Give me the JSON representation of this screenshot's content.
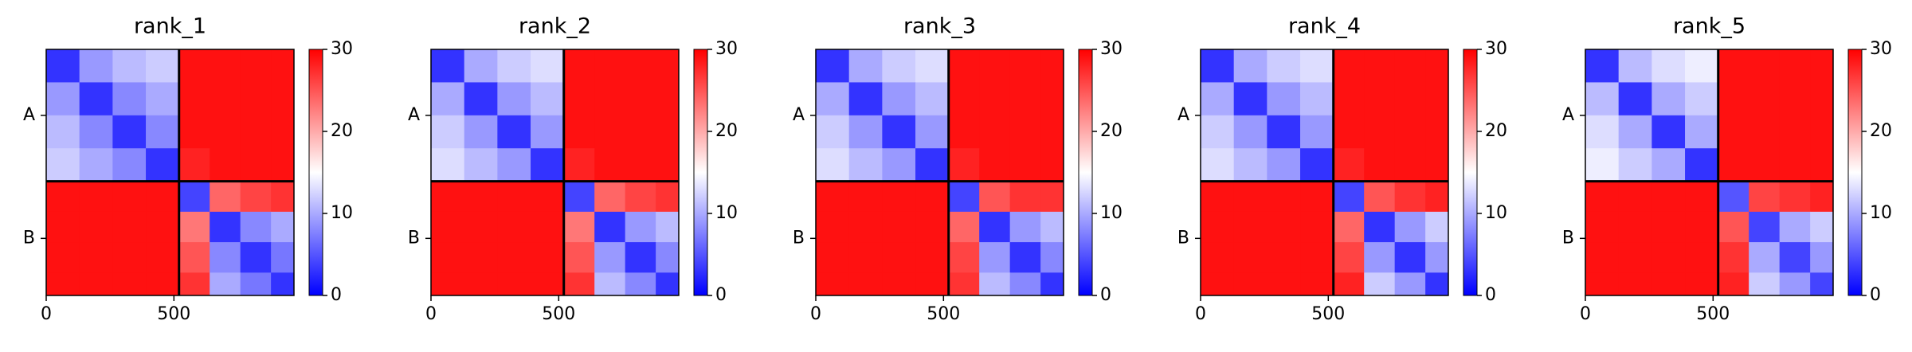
{
  "chart_data": [
    {
      "type": "heatmap",
      "title": "rank_1",
      "cmap": "bwr",
      "clim": [
        0,
        30
      ],
      "cticks": [
        0,
        10,
        20,
        30
      ],
      "xlim": [
        0,
        970
      ],
      "ylim": [
        970,
        0
      ],
      "xticks": [
        0,
        500
      ],
      "yticks": [
        {
          "value": 260,
          "label": "A"
        },
        {
          "value": 745,
          "label": "B"
        }
      ],
      "boundaries": [
        520
      ],
      "edges": [
        0,
        130,
        260,
        390,
        520,
        640,
        760,
        880,
        970
      ],
      "z": [
        [
          3,
          9,
          11,
          12,
          29,
          29,
          29,
          29
        ],
        [
          9,
          3,
          8,
          10,
          29,
          29,
          29,
          29
        ],
        [
          11,
          8,
          3,
          8,
          29,
          29,
          29,
          29
        ],
        [
          12,
          10,
          8,
          3,
          28,
          29,
          29,
          29
        ],
        [
          29,
          29,
          29,
          29,
          4,
          24,
          26,
          27
        ],
        [
          29,
          29,
          29,
          29,
          23,
          3,
          8,
          10
        ],
        [
          29,
          29,
          29,
          29,
          25,
          8,
          3,
          7
        ],
        [
          29,
          29,
          29,
          29,
          27,
          10,
          7,
          3
        ]
      ]
    },
    {
      "type": "heatmap",
      "title": "rank_2",
      "cmap": "bwr",
      "clim": [
        0,
        30
      ],
      "cticks": [
        0,
        10,
        20,
        30
      ],
      "xlim": [
        0,
        970
      ],
      "ylim": [
        970,
        0
      ],
      "xticks": [
        0,
        500
      ],
      "yticks": [
        {
          "value": 260,
          "label": "A"
        },
        {
          "value": 745,
          "label": "B"
        }
      ],
      "boundaries": [
        520
      ],
      "edges": [
        0,
        130,
        260,
        390,
        520,
        640,
        760,
        880,
        970
      ],
      "z": [
        [
          3,
          10,
          12,
          13,
          29,
          29,
          29,
          29
        ],
        [
          10,
          3,
          9,
          11,
          29,
          29,
          29,
          29
        ],
        [
          12,
          9,
          3,
          9,
          29,
          29,
          29,
          29
        ],
        [
          13,
          11,
          9,
          3,
          28,
          29,
          29,
          29
        ],
        [
          29,
          29,
          29,
          29,
          4,
          24,
          26,
          27
        ],
        [
          29,
          29,
          29,
          29,
          23,
          3,
          9,
          11
        ],
        [
          29,
          29,
          29,
          29,
          25,
          9,
          3,
          8
        ],
        [
          29,
          29,
          29,
          29,
          27,
          11,
          8,
          3
        ]
      ]
    },
    {
      "type": "heatmap",
      "title": "rank_3",
      "cmap": "bwr",
      "clim": [
        0,
        30
      ],
      "cticks": [
        0,
        10,
        20,
        30
      ],
      "xlim": [
        0,
        970
      ],
      "ylim": [
        970,
        0
      ],
      "xticks": [
        0,
        500
      ],
      "yticks": [
        {
          "value": 260,
          "label": "A"
        },
        {
          "value": 745,
          "label": "B"
        }
      ],
      "boundaries": [
        520
      ],
      "edges": [
        0,
        130,
        260,
        390,
        520,
        640,
        760,
        880,
        970
      ],
      "z": [
        [
          3,
          10,
          12,
          13,
          29,
          29,
          29,
          29
        ],
        [
          10,
          3,
          9,
          11,
          29,
          29,
          29,
          29
        ],
        [
          12,
          9,
          3,
          9,
          29,
          29,
          29,
          29
        ],
        [
          13,
          11,
          9,
          3,
          28,
          29,
          29,
          29
        ],
        [
          29,
          29,
          29,
          29,
          4,
          25,
          27,
          27
        ],
        [
          29,
          29,
          29,
          29,
          24,
          3,
          9,
          11
        ],
        [
          29,
          29,
          29,
          29,
          26,
          9,
          3,
          8
        ],
        [
          29,
          29,
          29,
          29,
          27,
          11,
          8,
          3
        ]
      ]
    },
    {
      "type": "heatmap",
      "title": "rank_4",
      "cmap": "bwr",
      "clim": [
        0,
        30
      ],
      "cticks": [
        0,
        10,
        20,
        30
      ],
      "xlim": [
        0,
        970
      ],
      "ylim": [
        970,
        0
      ],
      "xticks": [
        0,
        500
      ],
      "yticks": [
        {
          "value": 260,
          "label": "A"
        },
        {
          "value": 745,
          "label": "B"
        }
      ],
      "boundaries": [
        520
      ],
      "edges": [
        0,
        130,
        260,
        390,
        520,
        640,
        760,
        880,
        970
      ],
      "z": [
        [
          3,
          10,
          12,
          13,
          29,
          29,
          29,
          29
        ],
        [
          10,
          3,
          9,
          11,
          29,
          29,
          29,
          29
        ],
        [
          12,
          9,
          3,
          9,
          29,
          29,
          29,
          29
        ],
        [
          13,
          11,
          9,
          3,
          28,
          29,
          29,
          29
        ],
        [
          29,
          29,
          29,
          29,
          4,
          25,
          27,
          28
        ],
        [
          29,
          29,
          29,
          29,
          24,
          3,
          9,
          12
        ],
        [
          29,
          29,
          29,
          29,
          26,
          9,
          3,
          9
        ],
        [
          29,
          29,
          29,
          29,
          28,
          12,
          9,
          3
        ]
      ]
    },
    {
      "type": "heatmap",
      "title": "rank_5",
      "cmap": "bwr",
      "clim": [
        0,
        30
      ],
      "cticks": [
        0,
        10,
        20,
        30
      ],
      "xlim": [
        0,
        970
      ],
      "ylim": [
        970,
        0
      ],
      "xticks": [
        0,
        500
      ],
      "yticks": [
        {
          "value": 260,
          "label": "A"
        },
        {
          "value": 745,
          "label": "B"
        }
      ],
      "boundaries": [
        520
      ],
      "edges": [
        0,
        130,
        260,
        390,
        520,
        640,
        760,
        880,
        970
      ],
      "z": [
        [
          3,
          11,
          13,
          14,
          29,
          29,
          29,
          29
        ],
        [
          11,
          3,
          10,
          12,
          29,
          29,
          29,
          29
        ],
        [
          13,
          10,
          3,
          10,
          29,
          29,
          29,
          29
        ],
        [
          14,
          12,
          10,
          3,
          29,
          29,
          29,
          29
        ],
        [
          29,
          29,
          29,
          29,
          5,
          26,
          27,
          28
        ],
        [
          29,
          29,
          29,
          29,
          25,
          4,
          10,
          12
        ],
        [
          29,
          29,
          29,
          29,
          27,
          10,
          4,
          9
        ],
        [
          29,
          29,
          29,
          29,
          28,
          12,
          9,
          4
        ]
      ]
    }
  ]
}
